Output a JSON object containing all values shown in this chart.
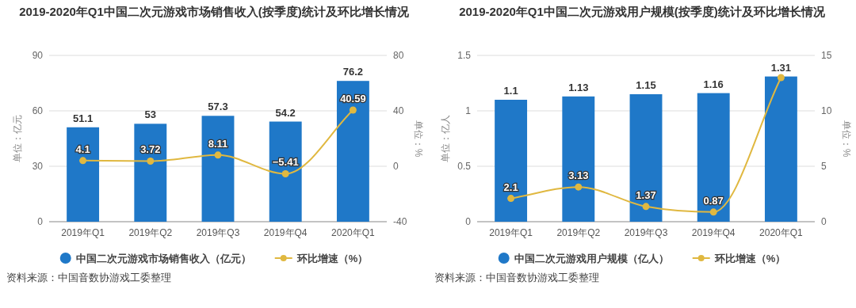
{
  "chart_data": [
    {
      "type": "bar",
      "title": "2019-2020年Q1中国二次元游戏市场销售收入(按季度)统计及环比增长情况",
      "ylabel": "单位：亿元",
      "y2label": "单位：%",
      "categories": [
        "2019年Q1",
        "2019年Q2",
        "2019年Q3",
        "2019年Q4",
        "2020年Q1"
      ],
      "series": [
        {
          "name": "中国二次元游戏市场销售收入（亿元）",
          "color": "#1f78c8",
          "values": [
            51.1,
            53,
            57.3,
            54.2,
            76.2
          ],
          "value_labels": [
            "51.1",
            "53",
            "57.3",
            "54.2",
            "76.2"
          ]
        },
        {
          "name": "环比增速（%）",
          "type": "line",
          "axis": "y2",
          "color": "#e0b840",
          "marker": "circle",
          "line_style": "solid",
          "values": [
            4.1,
            3.72,
            8.11,
            -5.41,
            40.59
          ],
          "value_labels": [
            "4.1",
            "3.72",
            "8.11",
            "−5.41",
            "40.59"
          ]
        }
      ],
      "ylim": [
        0,
        90
      ],
      "yticks": [
        0,
        30,
        60,
        90
      ],
      "y2lim": [
        -40,
        80
      ],
      "y2ticks": [
        -40,
        0,
        40,
        80
      ],
      "grid": "y",
      "legend": "bottom",
      "annotations": [
        "资料来源：中国音数协游戏工委整理"
      ]
    },
    {
      "type": "bar",
      "title": "2019-2020年Q1中国二次元游戏用户规模(按季度)统计及环比增长情况",
      "ylabel": "单位：亿人",
      "y2label": "单位：%",
      "categories": [
        "2019年Q1",
        "2019年Q2",
        "2019年Q3",
        "2019年Q4",
        "2020年Q1"
      ],
      "series": [
        {
          "name": "中国二次元游戏用户规模（亿人）",
          "color": "#1f78c8",
          "values": [
            1.1,
            1.13,
            1.15,
            1.16,
            1.31
          ],
          "value_labels": [
            "1.1",
            "1.13",
            "1.15",
            "1.16",
            "1.31"
          ]
        },
        {
          "name": "环比增速（%）",
          "type": "line",
          "axis": "y2",
          "color": "#e0b840",
          "marker": "circle",
          "line_style": "solid",
          "values": [
            2.1,
            3.13,
            1.37,
            0.87,
            13
          ],
          "value_labels": [
            "2.1",
            "3.13",
            "1.37",
            "0.87",
            null
          ]
        }
      ],
      "ylim": [
        0,
        1.5
      ],
      "yticks": [
        0,
        0.5,
        1,
        1.5
      ],
      "y2lim": [
        0,
        15
      ],
      "y2ticks": [
        0,
        5,
        10,
        15
      ],
      "grid": "y",
      "legend": "bottom",
      "annotations": [
        "资料来源：中国音数协游戏工委整理"
      ]
    }
  ]
}
